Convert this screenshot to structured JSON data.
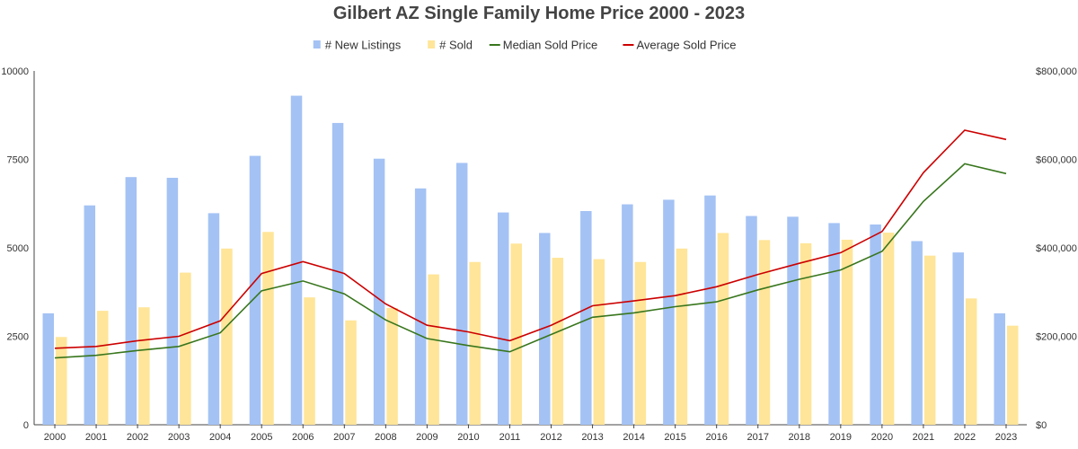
{
  "chart_data": {
    "type": "bar",
    "title": "Gilbert AZ Single Family Home Price 2000 - 2023",
    "categories": [
      "2000",
      "2001",
      "2002",
      "2003",
      "2004",
      "2005",
      "2006",
      "2007",
      "2008",
      "2009",
      "2010",
      "2011",
      "2012",
      "2013",
      "2014",
      "2015",
      "2016",
      "2017",
      "2018",
      "2019",
      "2020",
      "2021",
      "2022",
      "2023"
    ],
    "series": [
      {
        "name": "# New Listings",
        "type": "bar",
        "axis": "left",
        "color": "#a4c2f4",
        "values": [
          3150,
          6200,
          7000,
          6980,
          5980,
          7600,
          9300,
          8530,
          7520,
          6680,
          7400,
          6000,
          5420,
          6040,
          6230,
          6360,
          6480,
          5900,
          5880,
          5700,
          5660,
          5190,
          4870,
          3150
        ]
      },
      {
        "name": "# Sold",
        "type": "bar",
        "axis": "left",
        "color": "#ffe599",
        "values": [
          2480,
          3220,
          3320,
          4300,
          4980,
          5450,
          3600,
          2950,
          3300,
          4250,
          4600,
          5120,
          4720,
          4680,
          4600,
          4980,
          5420,
          5220,
          5130,
          5230,
          5430,
          4780,
          3570,
          2800
        ]
      },
      {
        "name": "Median Sold Price",
        "type": "line",
        "axis": "right",
        "color": "#38761d",
        "values": [
          151000,
          157000,
          168000,
          177000,
          208000,
          303000,
          325000,
          296000,
          237000,
          195000,
          179000,
          165000,
          204000,
          243000,
          253000,
          267000,
          278000,
          305000,
          329000,
          350000,
          392000,
          505000,
          590000,
          568000
        ]
      },
      {
        "name": "Average Sold Price",
        "type": "line",
        "axis": "right",
        "color": "#cc0000",
        "values": [
          173000,
          177000,
          190000,
          200000,
          235000,
          342000,
          369000,
          342000,
          273000,
          225000,
          210000,
          190000,
          225000,
          269000,
          280000,
          292000,
          312000,
          340000,
          365000,
          389000,
          437000,
          570000,
          666000,
          645000
        ]
      }
    ],
    "y_left": {
      "ticks": [
        "0",
        "2500",
        "5000",
        "7500",
        "10000"
      ],
      "ylim": [
        0,
        10000
      ]
    },
    "y_right": {
      "ticks": [
        "$0",
        "$200,000",
        "$400,000",
        "$600,000",
        "$800,000"
      ],
      "ylim": [
        0,
        800000
      ]
    },
    "legend_position": "top-center",
    "grid": false
  }
}
